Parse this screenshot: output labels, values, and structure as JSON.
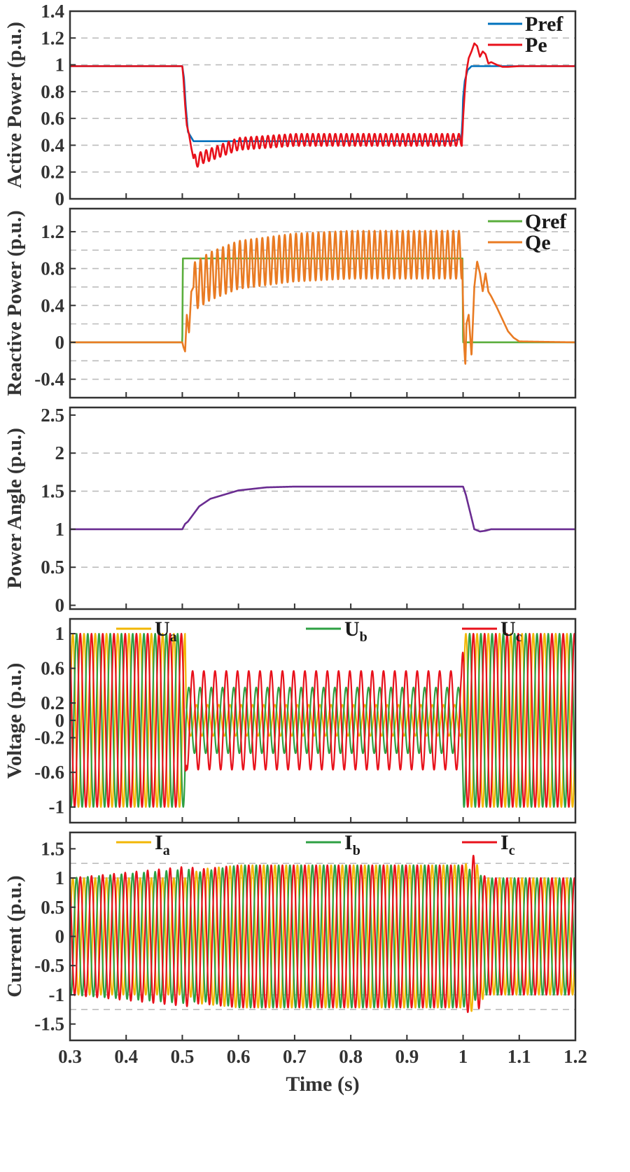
{
  "chart_data": [
    {
      "type": "line",
      "ylabel": "Active Power (p.u.)",
      "ylim": [
        0,
        1.4
      ],
      "yticks": [
        "0",
        "0.2",
        "0.4",
        "0.6",
        "0.8",
        "1",
        "1.2",
        "1.4"
      ],
      "ytick_values": [
        0,
        0.2,
        0.4,
        0.6,
        0.8,
        1,
        1.2,
        1.4
      ],
      "grid_values": [
        0.2,
        0.4,
        0.6,
        0.8,
        1.0,
        1.2
      ],
      "legend_position": "top-right",
      "series": [
        {
          "name": "Pref",
          "color": "#0072BD",
          "x": [
            0.3,
            0.5,
            0.503,
            0.506,
            0.51,
            0.52,
            0.55,
            0.98,
            0.997,
            0.999,
            1.0,
            1.003,
            1.008,
            1.015,
            1.02,
            1.2
          ],
          "values": [
            0.99,
            0.99,
            0.9,
            0.7,
            0.5,
            0.43,
            0.43,
            0.43,
            0.45,
            0.6,
            0.75,
            0.88,
            0.96,
            0.99,
            0.99,
            0.99
          ]
        },
        {
          "name": "Pe",
          "color": "#E8111B",
          "x": [
            0.3,
            0.5,
            0.502,
            0.505,
            0.508,
            0.512,
            0.516,
            0.52,
            0.525,
            0.53,
            0.55,
            0.6,
            0.7,
            0.8,
            0.9,
            0.998,
            0.999,
            1.0,
            1.003,
            1.006,
            1.01,
            1.015,
            1.02,
            1.025,
            1.03,
            1.035,
            1.04,
            1.045,
            1.05,
            1.06,
            1.07,
            1.08,
            1.1,
            1.2
          ],
          "values": [
            0.99,
            0.99,
            0.9,
            0.7,
            0.55,
            0.48,
            0.38,
            0.3,
            0.27,
            0.3,
            0.33,
            0.41,
            0.44,
            0.44,
            0.44,
            0.44,
            0.5,
            0.6,
            0.8,
            0.95,
            1.05,
            1.1,
            1.16,
            1.14,
            1.06,
            1.1,
            1.08,
            1.01,
            1.02,
            1.0,
            0.985,
            0.985,
            0.99,
            0.99
          ],
          "oscillation": {
            "start": 0.52,
            "end": 0.998,
            "frequency_hz": 100,
            "amplitude": 0.045
          }
        }
      ]
    },
    {
      "type": "line",
      "ylabel": "Reactive Power (p.u.)",
      "ylim": [
        -0.6,
        1.45
      ],
      "yticks": [
        "-0.4",
        "0",
        "0.4",
        "0.8",
        "1.2"
      ],
      "ytick_values": [
        -0.4,
        0,
        0.4,
        0.8,
        1.2
      ],
      "grid_values": [
        -0.4,
        -0.2,
        0.2,
        0.4,
        0.6,
        0.8,
        1.0,
        1.2
      ],
      "legend_position": "top-right",
      "series": [
        {
          "name": "Qref",
          "color": "#5AAE3C",
          "x": [
            0.3,
            0.5,
            0.501,
            0.999,
            1.0,
            1.2
          ],
          "values": [
            0,
            0,
            0.91,
            0.91,
            0,
            0
          ]
        },
        {
          "name": "Qe",
          "color": "#E97B23",
          "x": [
            0.3,
            0.5,
            0.502,
            0.505,
            0.508,
            0.512,
            0.516,
            0.52,
            0.55,
            0.6,
            0.7,
            0.8,
            0.9,
            0.998,
            1.0,
            1.002,
            1.004,
            1.006,
            1.01,
            1.015,
            1.02,
            1.025,
            1.03,
            1.035,
            1.04,
            1.045,
            1.05,
            1.06,
            1.07,
            1.08,
            1.09,
            1.1,
            1.2
          ],
          "values": [
            0,
            0,
            -0.05,
            -0.1,
            0.3,
            0.1,
            0.55,
            0.6,
            0.72,
            0.84,
            0.92,
            0.95,
            0.95,
            0.95,
            0.4,
            -0.05,
            -0.25,
            0.2,
            0.3,
            -0.15,
            0.6,
            0.88,
            0.75,
            0.55,
            0.75,
            0.55,
            0.5,
            0.38,
            0.25,
            0.12,
            0.05,
            0.01,
            0
          ],
          "oscillation": {
            "start": 0.52,
            "end": 0.998,
            "frequency_hz": 100,
            "amplitude": 0.26
          }
        }
      ]
    },
    {
      "type": "line",
      "ylabel": "Power Angle (p.u.)",
      "ylim": [
        -0.05,
        2.6
      ],
      "yticks": [
        "0",
        "0.5",
        "1",
        "1.5",
        "2",
        "2.5"
      ],
      "ytick_values": [
        0,
        0.5,
        1,
        1.5,
        2,
        2.5
      ],
      "grid_values": [
        0.5,
        1.0,
        1.5,
        2.0
      ],
      "series": [
        {
          "name": "Power Angle",
          "color": "#6A2C91",
          "x": [
            0.3,
            0.5,
            0.505,
            0.51,
            0.52,
            0.53,
            0.55,
            0.6,
            0.65,
            0.7,
            0.8,
            0.9,
            1.0,
            1.005,
            1.01,
            1.015,
            1.02,
            1.03,
            1.04,
            1.05,
            1.2
          ],
          "values": [
            1.0,
            1.0,
            1.07,
            1.1,
            1.2,
            1.3,
            1.4,
            1.51,
            1.55,
            1.56,
            1.56,
            1.56,
            1.56,
            1.45,
            1.3,
            1.15,
            1.0,
            0.97,
            0.98,
            1.0,
            1.0
          ]
        }
      ]
    },
    {
      "type": "line",
      "ylabel": "Voltage (p.u.)",
      "ylim": [
        -1.18,
        1.17
      ],
      "yticks": [
        "-1",
        "-0.6",
        "-0.2",
        "0",
        "0.2",
        "0.6",
        "1"
      ],
      "ytick_values": [
        -1,
        -0.6,
        -0.2,
        0,
        0.2,
        0.6,
        1
      ],
      "grid_values": [],
      "legend_position": "top (horizontal)",
      "frequency_hz": 50,
      "series": [
        {
          "name": "U",
          "subscript": "a",
          "color": "#F2B705",
          "phase_deg": 0,
          "amplitude": [
            {
              "x": 0.3,
              "v": 1.0
            },
            {
              "x": 0.505,
              "v": 1.0
            },
            {
              "x": 0.507,
              "v": 0.18
            },
            {
              "x": 0.997,
              "v": 0.18
            },
            {
              "x": 1.001,
              "v": 1.0
            },
            {
              "x": 1.2,
              "v": 1.0
            }
          ]
        },
        {
          "name": "U",
          "subscript": "b",
          "color": "#2EA043",
          "phase_deg": -120,
          "amplitude": [
            {
              "x": 0.3,
              "v": 1.0
            },
            {
              "x": 0.505,
              "v": 1.0
            },
            {
              "x": 0.507,
              "v": 0.38
            },
            {
              "x": 0.997,
              "v": 0.38
            },
            {
              "x": 1.001,
              "v": 1.0
            },
            {
              "x": 1.2,
              "v": 1.0
            }
          ]
        },
        {
          "name": "U",
          "subscript": "c",
          "color": "#E8111B",
          "phase_deg": 120,
          "amplitude": [
            {
              "x": 0.3,
              "v": 1.0
            },
            {
              "x": 0.505,
              "v": 1.0
            },
            {
              "x": 0.507,
              "v": 0.57
            },
            {
              "x": 0.997,
              "v": 0.57
            },
            {
              "x": 1.001,
              "v": 1.0
            },
            {
              "x": 1.2,
              "v": 1.0
            }
          ]
        }
      ]
    },
    {
      "type": "line",
      "ylabel": "Current (p.u.)",
      "xlabel": "Time (s)",
      "xlim": [
        0.3,
        1.2
      ],
      "xticks": [
        "0.3",
        "0.4",
        "0.5",
        "0.6",
        "0.7",
        "0.8",
        "0.9",
        "1",
        "1.1",
        "1.2"
      ],
      "xtick_values": [
        0.3,
        0.4,
        0.5,
        0.6,
        0.7,
        0.8,
        0.9,
        1.0,
        1.1,
        1.2
      ],
      "ylim": [
        -1.78,
        1.78
      ],
      "yticks": [
        "-1.5",
        "-1",
        "-0.5",
        "0",
        "0.5",
        "1",
        "1.5"
      ],
      "ytick_values": [
        -1.5,
        -1,
        -0.5,
        0,
        0.5,
        1,
        1.5
      ],
      "grid_values": [
        -1.25,
        -1.0,
        1.0,
        1.25
      ],
      "legend_position": "top (horizontal)",
      "frequency_hz": 50,
      "series": [
        {
          "name": "I",
          "subscript": "a",
          "color": "#F2B705",
          "phase_deg": 0,
          "amplitude": [
            {
              "x": 0.3,
              "v": 1.0
            },
            {
              "x": 0.51,
              "v": 1.0
            },
            {
              "x": 0.53,
              "v": 1.15
            },
            {
              "x": 0.6,
              "v": 1.22
            },
            {
              "x": 0.999,
              "v": 1.22
            },
            {
              "x": 1.02,
              "v": 1.3
            },
            {
              "x": 1.04,
              "v": 1.0
            },
            {
              "x": 1.2,
              "v": 1.0
            }
          ]
        },
        {
          "name": "I",
          "subscript": "b",
          "color": "#2EA043",
          "phase_deg": -120,
          "amplitude": [
            {
              "x": 0.3,
              "v": 1.0
            },
            {
              "x": 0.51,
              "v": 1.15
            },
            {
              "x": 0.53,
              "v": 1.1
            },
            {
              "x": 0.6,
              "v": 1.22
            },
            {
              "x": 0.999,
              "v": 1.22
            },
            {
              "x": 1.02,
              "v": 1.1
            },
            {
              "x": 1.04,
              "v": 1.0
            },
            {
              "x": 1.2,
              "v": 1.0
            }
          ]
        },
        {
          "name": "I",
          "subscript": "c",
          "color": "#E8111B",
          "phase_deg": 120,
          "amplitude": [
            {
              "x": 0.3,
              "v": 1.0
            },
            {
              "x": 0.51,
              "v": 1.2
            },
            {
              "x": 0.53,
              "v": 1.15
            },
            {
              "x": 0.6,
              "v": 1.22
            },
            {
              "x": 0.999,
              "v": 1.22
            },
            {
              "x": 1.02,
              "v": 1.4
            },
            {
              "x": 1.04,
              "v": 1.0
            },
            {
              "x": 1.2,
              "v": 1.0
            }
          ]
        }
      ]
    }
  ]
}
